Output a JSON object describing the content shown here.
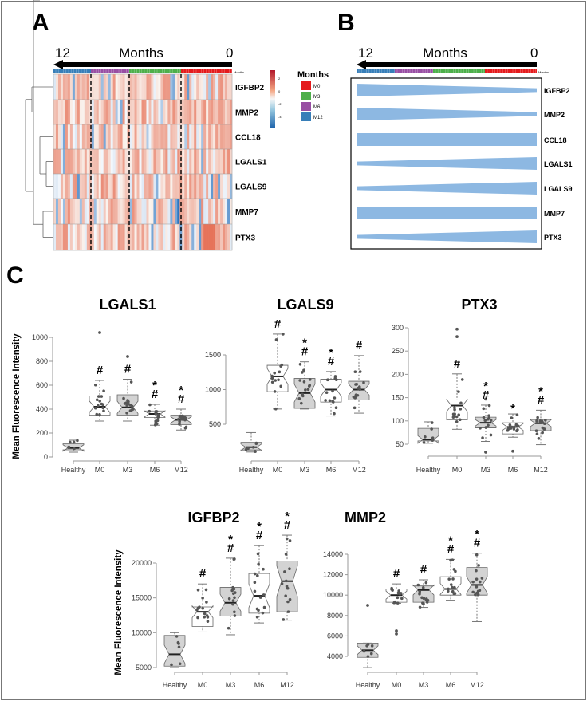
{
  "panels": {
    "a": "A",
    "b": "B",
    "c": "C"
  },
  "timeline": {
    "start": "12",
    "label": "Months",
    "end": "0",
    "strip_label": "Months"
  },
  "genes": [
    "IGFBP2",
    "MMP2",
    "CCL18",
    "LGALS1",
    "LGALS9",
    "MMP7",
    "PTX3"
  ],
  "legend": {
    "title": "Months",
    "items": [
      {
        "label": "M0",
        "color": "#e41a1c"
      },
      {
        "label": "M3",
        "color": "#4daf4a"
      },
      {
        "label": "M6",
        "color": "#984ea3"
      },
      {
        "label": "M12",
        "color": "#377eb8"
      }
    ]
  },
  "colorbar": {
    "ticks": [
      "2",
      "0",
      "-2",
      "-4"
    ],
    "high": "#b2182b",
    "mid": "#f7f7f7",
    "low": "#2166ac"
  },
  "trend_color": "#8db8e2",
  "trends": [
    {
      "gene": "IGFBP2",
      "start": 1.0,
      "end": 0.3
    },
    {
      "gene": "MMP2",
      "start": 1.0,
      "end": 0.3
    },
    {
      "gene": "CCL18",
      "start": 1.0,
      "end": 1.0
    },
    {
      "gene": "LGALS1",
      "start": 0.3,
      "end": 1.0
    },
    {
      "gene": "LGALS9",
      "start": 0.3,
      "end": 1.0
    },
    {
      "gene": "MMP7",
      "start": 1.0,
      "end": 1.0
    },
    {
      "gene": "PTX3",
      "start": 0.3,
      "end": 1.0
    }
  ],
  "chart_data": [
    {
      "type": "box",
      "title": "LGALS1",
      "ylabel": "Mean Fluorescence Intensity",
      "categories": [
        "Healthy",
        "M0",
        "M3",
        "M6",
        "M12"
      ],
      "yticks": [
        0,
        200,
        400,
        600,
        800,
        1000
      ],
      "boxes": [
        {
          "min": 40,
          "q1": 60,
          "median": 75,
          "q3": 110,
          "max": 140,
          "fill": "gray",
          "outliers": [],
          "marks": ""
        },
        {
          "min": 300,
          "q1": 350,
          "median": 420,
          "q3": 510,
          "max": 640,
          "fill": "white",
          "outliers": [
            1040
          ],
          "marks": "#"
        },
        {
          "min": 300,
          "q1": 350,
          "median": 415,
          "q3": 520,
          "max": 650,
          "fill": "gray",
          "outliers": [
            840
          ],
          "marks": "#"
        },
        {
          "min": 265,
          "q1": 330,
          "median": 360,
          "q3": 385,
          "max": 440,
          "fill": "white",
          "outliers": [],
          "marks": "* #"
        },
        {
          "min": 225,
          "q1": 270,
          "median": 310,
          "q3": 350,
          "max": 400,
          "fill": "gray",
          "outliers": [],
          "marks": "* #"
        }
      ]
    },
    {
      "type": "box",
      "title": "LGALS9",
      "ylabel": "",
      "categories": [
        "Healthy",
        "M0",
        "M3",
        "M6",
        "M12"
      ],
      "yticks": [
        500,
        1000,
        1500
      ],
      "boxes": [
        {
          "min": 100,
          "q1": 130,
          "median": 170,
          "q3": 240,
          "max": 380,
          "fill": "gray",
          "outliers": [],
          "marks": ""
        },
        {
          "min": 720,
          "q1": 970,
          "median": 1190,
          "q3": 1350,
          "max": 1800,
          "fill": "white",
          "outliers": [],
          "marks": "#"
        },
        {
          "min": 720,
          "q1": 730,
          "median": 950,
          "q3": 1160,
          "max": 1400,
          "fill": "gray",
          "outliers": [],
          "marks": "* #"
        },
        {
          "min": 620,
          "q1": 820,
          "median": 1000,
          "q3": 1150,
          "max": 1260,
          "fill": "white",
          "outliers": [],
          "marks": "* #"
        },
        {
          "min": 660,
          "q1": 850,
          "median": 1000,
          "q3": 1120,
          "max": 1490,
          "fill": "gray",
          "outliers": [],
          "marks": "#"
        }
      ]
    },
    {
      "type": "box",
      "title": "PTX3",
      "ylabel": "",
      "categories": [
        "Healthy",
        "M0",
        "M3",
        "M6",
        "M12"
      ],
      "yticks": [
        50,
        100,
        150,
        200,
        250,
        300
      ],
      "boxes": [
        {
          "min": 52,
          "q1": 57,
          "median": 60,
          "q3": 84,
          "max": 98,
          "fill": "gray",
          "outliers": [],
          "marks": ""
        },
        {
          "min": 82,
          "q1": 102,
          "median": 133,
          "q3": 145,
          "max": 201,
          "fill": "white",
          "outliers": [
            281,
            297
          ],
          "marks": "#"
        },
        {
          "min": 56,
          "q1": 85,
          "median": 96,
          "q3": 108,
          "max": 134,
          "fill": "gray",
          "outliers": [
            33,
            147
          ],
          "marks": "* #"
        },
        {
          "min": 65,
          "q1": 72,
          "median": 87,
          "q3": 96,
          "max": 115,
          "fill": "white",
          "outliers": [
            35
          ],
          "marks": "*"
        },
        {
          "min": 49,
          "q1": 79,
          "median": 95,
          "q3": 103,
          "max": 123,
          "fill": "gray",
          "outliers": [],
          "marks": "* #"
        }
      ]
    },
    {
      "type": "box",
      "title": "IGFBP2",
      "ylabel": "Mean Fluorescence Intensity",
      "categories": [
        "Healthy",
        "M0",
        "M3",
        "M6",
        "M12"
      ],
      "yticks": [
        5000,
        10000,
        15000,
        20000
      ],
      "boxes": [
        {
          "min": 5000,
          "q1": 5200,
          "median": 6900,
          "q3": 9600,
          "max": 10000,
          "fill": "gray",
          "outliers": [],
          "marks": ""
        },
        {
          "min": 10100,
          "q1": 10900,
          "median": 13000,
          "q3": 13700,
          "max": 17000,
          "fill": "white",
          "outliers": [],
          "marks": "#"
        },
        {
          "min": 9700,
          "q1": 12400,
          "median": 14300,
          "q3": 16500,
          "max": 20700,
          "fill": "gray",
          "outliers": [],
          "marks": "* #"
        },
        {
          "min": 11400,
          "q1": 12800,
          "median": 15300,
          "q3": 18500,
          "max": 22500,
          "fill": "white",
          "outliers": [],
          "marks": "* #"
        },
        {
          "min": 11800,
          "q1": 13000,
          "median": 17400,
          "q3": 20300,
          "max": 24000,
          "fill": "gray",
          "outliers": [],
          "marks": "* #"
        }
      ]
    },
    {
      "type": "box",
      "title": "MMP2",
      "ylabel": "",
      "categories": [
        "Healthy",
        "M0",
        "M3",
        "M6",
        "M12"
      ],
      "yticks": [
        4000,
        6000,
        8000,
        10000,
        12000,
        14000
      ],
      "boxes": [
        {
          "min": 2900,
          "q1": 3900,
          "median": 4600,
          "q3": 5300,
          "max": 5300,
          "fill": "gray",
          "outliers": [
            9000
          ],
          "marks": ""
        },
        {
          "min": 9200,
          "q1": 9300,
          "median": 10000,
          "q3": 10600,
          "max": 11100,
          "fill": "white",
          "outliers": [
            6200,
            6500
          ],
          "marks": "#"
        },
        {
          "min": 8800,
          "q1": 9300,
          "median": 10500,
          "q3": 10900,
          "max": 11500,
          "fill": "gray",
          "outliers": [],
          "marks": "#"
        },
        {
          "min": 9500,
          "q1": 10000,
          "median": 10600,
          "q3": 11800,
          "max": 13500,
          "fill": "white",
          "outliers": [],
          "marks": "* #"
        },
        {
          "min": 7400,
          "q1": 10000,
          "median": 11000,
          "q3": 12700,
          "max": 14100,
          "fill": "gray",
          "outliers": [],
          "marks": "* #"
        }
      ]
    }
  ]
}
